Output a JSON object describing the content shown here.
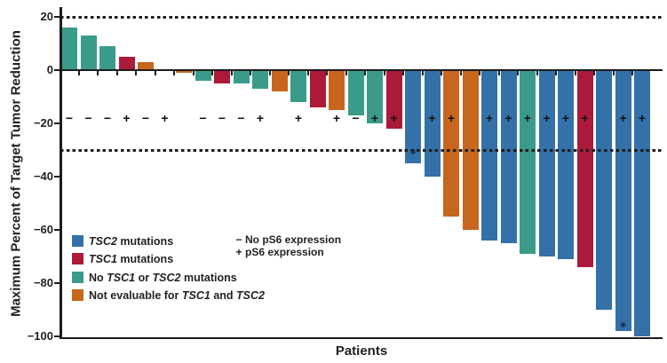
{
  "figure": {
    "ylabel": "Maximum Percent of Target Tumor Reduction",
    "xlabel": "Patients"
  },
  "chart_data": {
    "type": "bar",
    "subtype": "waterfall",
    "title": "",
    "xlabel": "Patients",
    "ylabel": "Maximum Percent of Target Tumor Reduction",
    "ylim": [
      -100,
      24
    ],
    "grid": false,
    "yticks": [
      {
        "value": 20,
        "label": "20"
      },
      {
        "value": 0,
        "label": "0"
      },
      {
        "value": -20,
        "label": "−20"
      },
      {
        "value": -40,
        "label": "−40"
      },
      {
        "value": -60,
        "label": "−60"
      },
      {
        "value": -80,
        "label": "−80"
      },
      {
        "value": -100,
        "label": "−100"
      }
    ],
    "reference_lines": [
      {
        "value": 20,
        "style": "dashed"
      },
      {
        "value": -30,
        "style": "dashed"
      }
    ],
    "ps6_symbol_row_value": -18,
    "groups": {
      "tsc2": {
        "color": "#3371a8",
        "label": "TSC2 mutations"
      },
      "tsc1": {
        "color": "#ab1a39",
        "label": "TSC1 mutations"
      },
      "no_mut": {
        "color": "#3a9b8b",
        "label": "No TSC1 or TSC2 mutations"
      },
      "not_eval": {
        "color": "#c7661c",
        "label": "Not evaluable for TSC1 and TSC2"
      }
    },
    "patients": [
      {
        "value": 16,
        "group": "no_mut",
        "ps6": "−"
      },
      {
        "value": 13,
        "group": "no_mut",
        "ps6": "−"
      },
      {
        "value": 9,
        "group": "no_mut",
        "ps6": "−"
      },
      {
        "value": 5,
        "group": "tsc1",
        "ps6": "+"
      },
      {
        "value": 3,
        "group": "not_eval",
        "ps6": "−"
      },
      {
        "value": 0,
        "group": null,
        "ps6": "+"
      },
      {
        "value": -1,
        "group": "not_eval",
        "ps6": null
      },
      {
        "value": -4,
        "group": "no_mut",
        "ps6": "−"
      },
      {
        "value": -5,
        "group": "tsc1",
        "ps6": "−"
      },
      {
        "value": -5,
        "group": "no_mut",
        "ps6": "−"
      },
      {
        "value": -7,
        "group": "no_mut",
        "ps6": "+"
      },
      {
        "value": -8,
        "group": "not_eval",
        "ps6": null
      },
      {
        "value": -12,
        "group": "no_mut",
        "ps6": "+"
      },
      {
        "value": -14,
        "group": "tsc1",
        "ps6": null
      },
      {
        "value": -15,
        "group": "not_eval",
        "ps6": "+"
      },
      {
        "value": -17,
        "group": "no_mut",
        "ps6": "−"
      },
      {
        "value": -20,
        "group": "no_mut",
        "ps6": "+"
      },
      {
        "value": -22,
        "group": "tsc1",
        "ps6": "+"
      },
      {
        "value": -35,
        "group": "tsc2",
        "ps6": null,
        "asterisk_at": -31
      },
      {
        "value": -40,
        "group": "tsc2",
        "ps6": "+"
      },
      {
        "value": -55,
        "group": "not_eval",
        "ps6": "+"
      },
      {
        "value": -60,
        "group": "not_eval",
        "ps6": null
      },
      {
        "value": -64,
        "group": "tsc2",
        "ps6": "+"
      },
      {
        "value": -65,
        "group": "tsc2",
        "ps6": "+"
      },
      {
        "value": -69,
        "group": "no_mut",
        "ps6": "+"
      },
      {
        "value": -70,
        "group": "tsc2",
        "ps6": "+"
      },
      {
        "value": -71,
        "group": "tsc2",
        "ps6": "+"
      },
      {
        "value": -74,
        "group": "tsc1",
        "ps6": "+"
      },
      {
        "value": -90,
        "group": "tsc2",
        "ps6": null
      },
      {
        "value": -98,
        "group": "tsc2",
        "ps6": "+",
        "asterisk_at": -96
      },
      {
        "value": -100,
        "group": "tsc2",
        "ps6": "+"
      }
    ]
  },
  "legend": {
    "items": [
      {
        "group": "tsc2",
        "segments": [
          {
            "text": "TSC2",
            "italic": true
          },
          {
            "text": " mutations",
            "italic": false
          }
        ]
      },
      {
        "group": "tsc1",
        "segments": [
          {
            "text": "TSC1",
            "italic": true
          },
          {
            "text": " mutations",
            "italic": false
          }
        ]
      },
      {
        "group": "no_mut",
        "segments": [
          {
            "text": "No ",
            "italic": false
          },
          {
            "text": "TSC1",
            "italic": true
          },
          {
            "text": " or ",
            "italic": false
          },
          {
            "text": "TSC2",
            "italic": true
          },
          {
            "text": " mutations",
            "italic": false
          }
        ]
      },
      {
        "group": "not_eval",
        "segments": [
          {
            "text": "Not evaluable for ",
            "italic": false
          },
          {
            "text": "TSC1",
            "italic": true
          },
          {
            "text": " and ",
            "italic": false
          },
          {
            "text": "TSC2",
            "italic": true
          }
        ]
      }
    ],
    "ps6_items": [
      {
        "symbol": "−",
        "label": "No pS6 expression"
      },
      {
        "symbol": "+",
        "label": "pS6 expression"
      }
    ]
  }
}
